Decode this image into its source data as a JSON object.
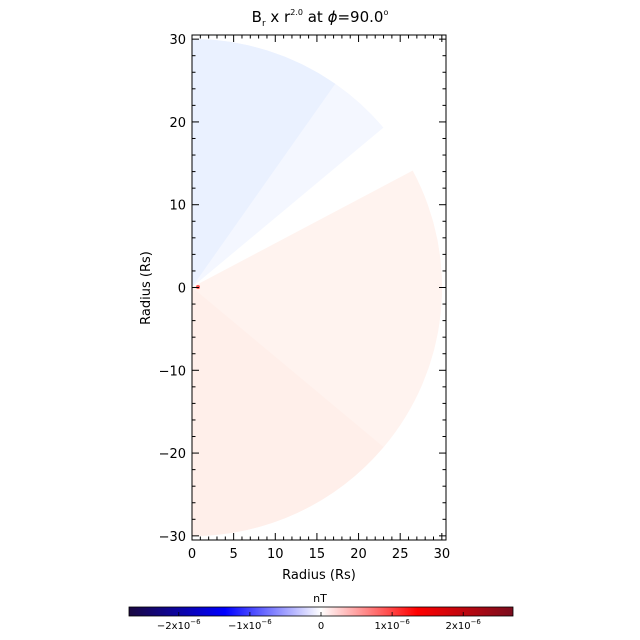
{
  "chart_data": {
    "type": "heatmap",
    "title": {
      "prefix": "B",
      "sub": "r",
      "mid": " x r",
      "power": "2.0",
      "suffix": " at ",
      "phi": "ϕ",
      "value": "=90.0",
      "degree": "o"
    },
    "xlabel": "Radius (Rs)",
    "ylabel": "Radius (Rs)",
    "xlim": [
      0,
      30.5
    ],
    "ylim": [
      -30.5,
      30.5
    ],
    "x_ticks": [
      "0",
      "5",
      "10",
      "15",
      "20",
      "25",
      "30"
    ],
    "x_tick_values": [
      0,
      5,
      10,
      15,
      20,
      25,
      30
    ],
    "y_ticks": [
      "30",
      "20",
      "10",
      "0",
      "−10",
      "−20",
      "−30"
    ],
    "y_tick_values": [
      30,
      20,
      10,
      0,
      -10,
      -20,
      -30
    ],
    "grid": false,
    "max_radius": 30,
    "colorbar": {
      "label": "nT",
      "range": [
        -2.7e-06,
        2.7e-06
      ],
      "colors": [
        "#1a0840",
        "#0000ff",
        "#ffffff",
        "#ff0000",
        "#7a0d1e"
      ],
      "ticks": [
        {
          "value": -2e-06,
          "mant": "−2x10",
          "exp": "−6"
        },
        {
          "value": -1e-06,
          "mant": "−1x10",
          "exp": "−6"
        },
        {
          "value": 0,
          "mant": "0",
          "exp": ""
        },
        {
          "value": 1e-06,
          "mant": "1x10",
          "exp": "−6"
        },
        {
          "value": 2e-06,
          "mant": "2x10",
          "exp": "−6"
        }
      ]
    },
    "sectors": [
      {
        "theta_from": 90,
        "theta_to": 55,
        "color": "#eaf1ff"
      },
      {
        "theta_from": 55,
        "theta_to": 40,
        "color": "#f4f7ff"
      },
      {
        "theta_from": 40,
        "theta_to": 28,
        "color": "#ffffff"
      },
      {
        "theta_from": 28,
        "theta_to": -40,
        "color": "#fff3ef"
      },
      {
        "theta_from": -40,
        "theta_to": -90,
        "color": "#ffefea"
      }
    ]
  }
}
